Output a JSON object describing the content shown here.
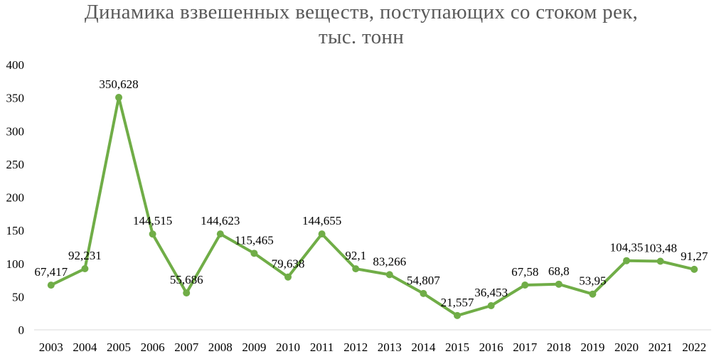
{
  "chart_data": {
    "type": "line",
    "title_line1": "Динамика взвешенных веществ, поступающих со стоком рек,",
    "title_line2": "тыс. тонн",
    "xlabel": "",
    "ylabel": "",
    "ylim": [
      0,
      400
    ],
    "y_ticks": [
      "0",
      "50",
      "100",
      "150",
      "200",
      "250",
      "300",
      "350",
      "400"
    ],
    "grid": false,
    "legend": "none",
    "line_color": "#70AD47",
    "categories": [
      "2003",
      "2004",
      "2005",
      "2006",
      "2007",
      "2008",
      "2009",
      "2010",
      "2011",
      "2012",
      "2013",
      "2014",
      "2015",
      "2016",
      "2017",
      "2018",
      "2019",
      "2020",
      "2021",
      "2022"
    ],
    "values": [
      67.417,
      92.231,
      350.628,
      144.515,
      55.686,
      144.623,
      115.465,
      79.638,
      144.655,
      92.1,
      83.266,
      54.807,
      21.557,
      36.453,
      67.58,
      68.8,
      53.95,
      104.35,
      103.48,
      91.27
    ],
    "data_labels": [
      "67,417",
      "92,231",
      "350,628",
      "144,515",
      "55,686",
      "144,623",
      "115,465",
      "79,638",
      "144,655",
      "92,1",
      "83,266",
      "54,807",
      "21,557",
      "36,453",
      "67,58",
      "68,8",
      "53,95",
      "104,35",
      "103,48",
      "91,27"
    ]
  }
}
